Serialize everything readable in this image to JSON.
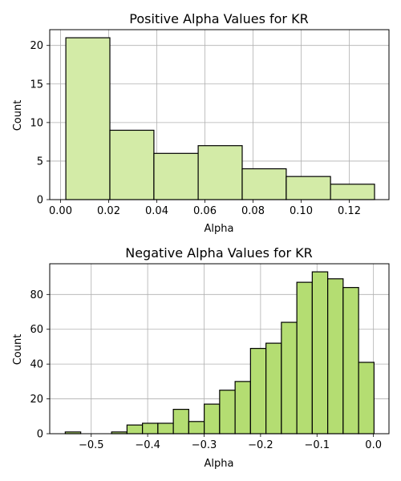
{
  "colors": {
    "top_fill": "#d3eba7",
    "bottom_fill": "#b4dd72",
    "edge": "#000000",
    "grid": "#b0b0b0"
  },
  "chart_data": [
    {
      "type": "bar",
      "title": "Positive Alpha Values for KR",
      "xlabel": "Alpha",
      "ylabel": "Count",
      "xlim": [
        -0.0045,
        0.1365
      ],
      "ylim": [
        0,
        22.05
      ],
      "xticks": [
        0.0,
        0.02,
        0.04,
        0.06,
        0.08,
        0.1,
        0.12
      ],
      "xtick_labels": [
        "0.00",
        "0.02",
        "0.04",
        "0.06",
        "0.08",
        "0.10",
        "0.12"
      ],
      "yticks": [
        0,
        5,
        10,
        15,
        20
      ],
      "ytick_labels": [
        "0",
        "5",
        "10",
        "15",
        "20"
      ],
      "grid": true,
      "bins": [
        {
          "x0": 0.0022,
          "x1": 0.0205,
          "value": 21
        },
        {
          "x0": 0.0205,
          "x1": 0.0388,
          "value": 9
        },
        {
          "x0": 0.0388,
          "x1": 0.0572,
          "value": 6
        },
        {
          "x0": 0.0572,
          "x1": 0.0755,
          "value": 7
        },
        {
          "x0": 0.0755,
          "x1": 0.0938,
          "value": 4
        },
        {
          "x0": 0.0938,
          "x1": 0.1122,
          "value": 3
        },
        {
          "x0": 0.1122,
          "x1": 0.1305,
          "value": 2
        }
      ]
    },
    {
      "type": "bar",
      "title": "Negative Alpha Values for KR",
      "xlabel": "Alpha",
      "ylabel": "Count",
      "xlim": [
        -0.5735,
        0.0275
      ],
      "ylim": [
        0,
        97.65
      ],
      "xticks": [
        -0.5,
        -0.4,
        -0.3,
        -0.2,
        -0.1,
        0.0
      ],
      "xtick_labels": [
        "−0.5",
        "−0.4",
        "−0.3",
        "−0.2",
        "−0.1",
        "0.0"
      ],
      "yticks": [
        0,
        20,
        40,
        60,
        80
      ],
      "ytick_labels": [
        "0",
        "20",
        "40",
        "60",
        "80"
      ],
      "grid": true,
      "bins": [
        {
          "x0": -0.546,
          "x1": -0.5186,
          "value": 1
        },
        {
          "x0": -0.5186,
          "x1": -0.4913,
          "value": 0
        },
        {
          "x0": -0.4913,
          "x1": -0.4639,
          "value": 0
        },
        {
          "x0": -0.4639,
          "x1": -0.4366,
          "value": 1
        },
        {
          "x0": -0.4366,
          "x1": -0.4092,
          "value": 5
        },
        {
          "x0": -0.4092,
          "x1": -0.3819,
          "value": 6
        },
        {
          "x0": -0.3819,
          "x1": -0.3545,
          "value": 6
        },
        {
          "x0": -0.3545,
          "x1": -0.3272,
          "value": 14
        },
        {
          "x0": -0.3272,
          "x1": -0.2998,
          "value": 7
        },
        {
          "x0": -0.2998,
          "x1": -0.2725,
          "value": 17
        },
        {
          "x0": -0.2725,
          "x1": -0.2451,
          "value": 25
        },
        {
          "x0": -0.2451,
          "x1": -0.2178,
          "value": 30
        },
        {
          "x0": -0.2178,
          "x1": -0.1904,
          "value": 49
        },
        {
          "x0": -0.1904,
          "x1": -0.1631,
          "value": 52
        },
        {
          "x0": -0.1631,
          "x1": -0.1357,
          "value": 64
        },
        {
          "x0": -0.1357,
          "x1": -0.1084,
          "value": 87
        },
        {
          "x0": -0.1084,
          "x1": -0.081,
          "value": 93
        },
        {
          "x0": -0.081,
          "x1": -0.0537,
          "value": 89
        },
        {
          "x0": -0.0537,
          "x1": -0.0263,
          "value": 84
        },
        {
          "x0": -0.0263,
          "x1": 0.001,
          "value": 41
        }
      ]
    }
  ]
}
